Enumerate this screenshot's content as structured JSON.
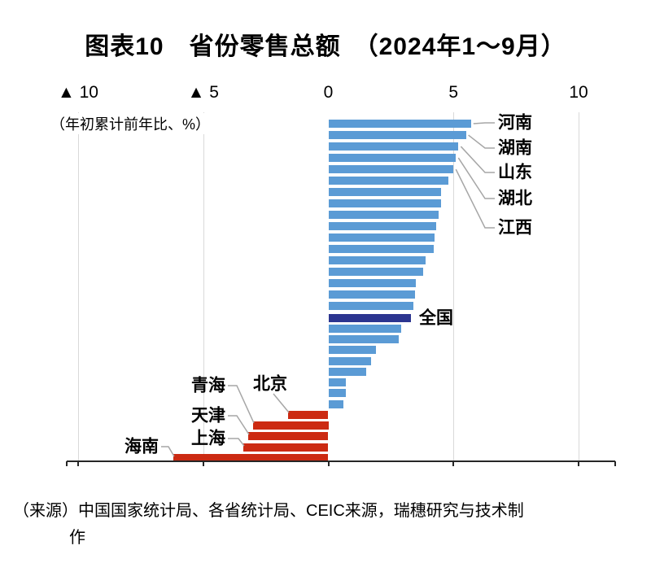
{
  "title": "图表10　省份零售总额　（2024年1～9月）",
  "axis": {
    "unit_note": "（年初累计前年比、%）"
  },
  "source": {
    "line1": "（来源）中国国家统计局、各省统计局、CEIC来源，瑞穗研究与技术制",
    "line2": "作"
  },
  "colors": {
    "province_positive": "#5B9BD5",
    "national": "#2C3590",
    "negative": "#CC2A12",
    "gridline": "#D9D9D9",
    "leader": "#A6A6A6",
    "axis_line": "#262626"
  },
  "chart_data": {
    "type": "bar",
    "orientation": "horizontal",
    "title": "图表10　省份零售总额（2024年1～9月）",
    "value_axis_label": "年初累计前年比、%",
    "xlim": [
      -10,
      10
    ],
    "grid": true,
    "negative_notation": "▲ = negative (triangle minus)",
    "x_ticks": [
      {
        "value": -10,
        "label": "▲ 10"
      },
      {
        "value": -5,
        "label": "▲ 5"
      },
      {
        "value": 0,
        "label": "0"
      },
      {
        "value": 5,
        "label": "5"
      },
      {
        "value": 10,
        "label": "10"
      }
    ],
    "bars": [
      {
        "label": "河南",
        "value": 5.7,
        "group": "province"
      },
      {
        "label": "湖南",
        "value": 5.5,
        "group": "province"
      },
      {
        "label": "山东",
        "value": 5.2,
        "group": "province"
      },
      {
        "label": "湖北",
        "value": 5.1,
        "group": "province"
      },
      {
        "label": "江西",
        "value": 5.0,
        "group": "province"
      },
      {
        "label": "",
        "value": 4.8,
        "group": "province"
      },
      {
        "label": "",
        "value": 4.5,
        "group": "province"
      },
      {
        "label": "",
        "value": 4.5,
        "group": "province"
      },
      {
        "label": "",
        "value": 4.4,
        "group": "province"
      },
      {
        "label": "",
        "value": 4.3,
        "group": "province"
      },
      {
        "label": "",
        "value": 4.25,
        "group": "province"
      },
      {
        "label": "",
        "value": 4.2,
        "group": "province"
      },
      {
        "label": "",
        "value": 3.9,
        "group": "province"
      },
      {
        "label": "",
        "value": 3.8,
        "group": "province"
      },
      {
        "label": "",
        "value": 3.5,
        "group": "province"
      },
      {
        "label": "",
        "value": 3.45,
        "group": "province"
      },
      {
        "label": "",
        "value": 3.4,
        "group": "province"
      },
      {
        "label": "全国",
        "value": 3.3,
        "group": "national"
      },
      {
        "label": "",
        "value": 2.9,
        "group": "province"
      },
      {
        "label": "",
        "value": 2.8,
        "group": "province"
      },
      {
        "label": "",
        "value": 1.9,
        "group": "province"
      },
      {
        "label": "",
        "value": 1.7,
        "group": "province"
      },
      {
        "label": "",
        "value": 1.5,
        "group": "province"
      },
      {
        "label": "",
        "value": 0.7,
        "group": "province"
      },
      {
        "label": "",
        "value": 0.7,
        "group": "province"
      },
      {
        "label": "",
        "value": 0.6,
        "group": "province"
      },
      {
        "label": "北京",
        "value": -1.6,
        "group": "province"
      },
      {
        "label": "青海",
        "value": -3.0,
        "group": "province"
      },
      {
        "label": "天津",
        "value": -3.2,
        "group": "province"
      },
      {
        "label": "上海",
        "value": -3.4,
        "group": "province"
      },
      {
        "label": "海南",
        "value": -6.2,
        "group": "province"
      }
    ]
  }
}
